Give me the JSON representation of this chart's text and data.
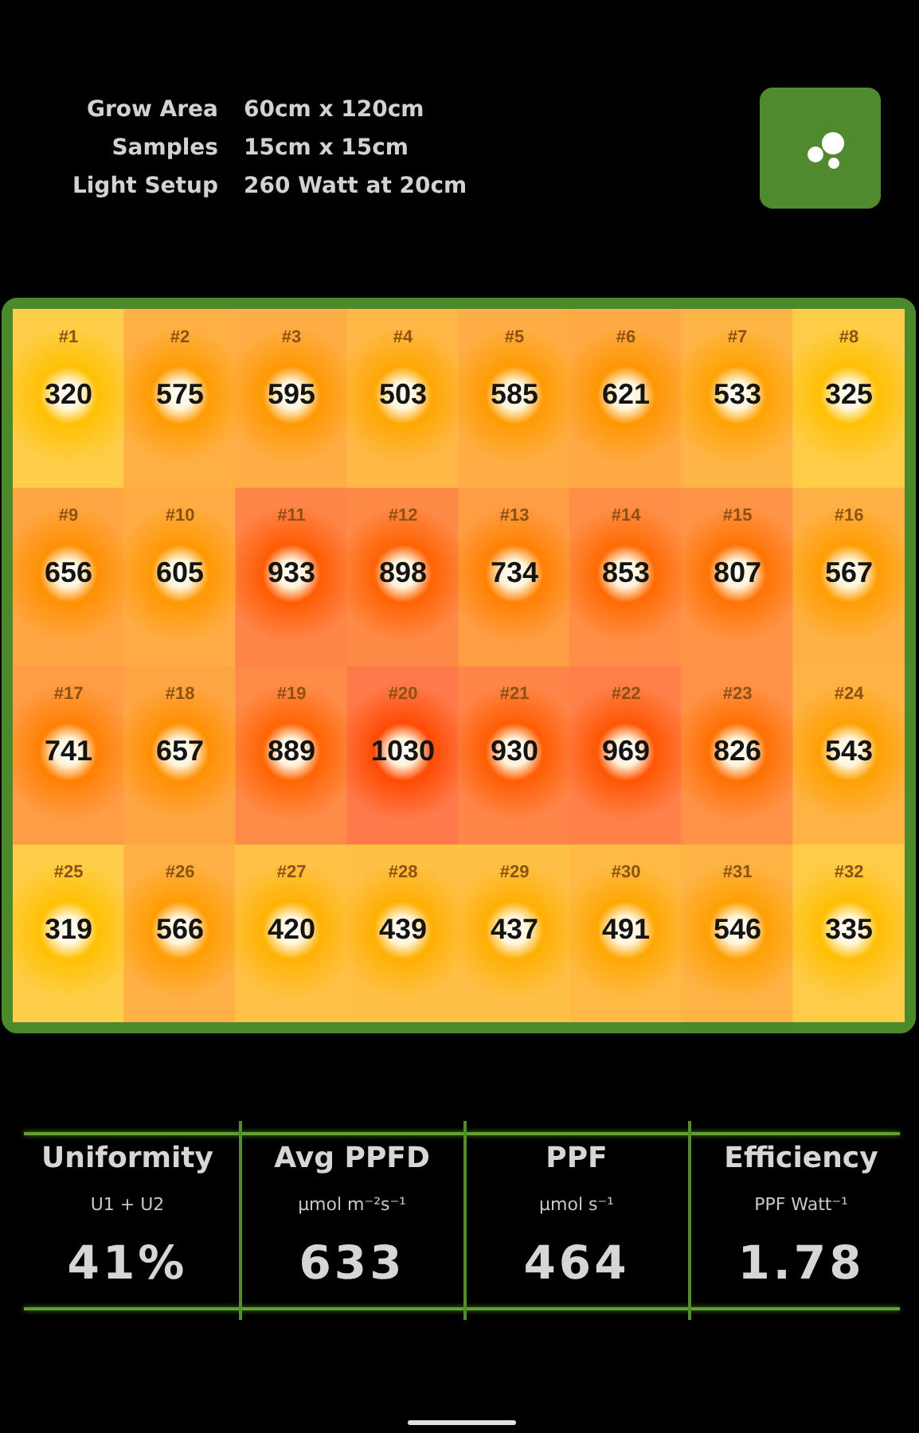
{
  "chart_data": [
    {
      "type": "other",
      "annotations": [
        "Grow Area",
        "60cm x 120cm",
        "Samples",
        "15cm x 15cm",
        "Light Setup",
        "260 Watt at 20cm"
      ]
    },
    {
      "type": "heatmap",
      "categories": [
        null,
        null,
        null,
        null,
        null,
        null,
        null,
        null
      ],
      "y_categories": [
        null,
        null,
        null,
        null
      ],
      "cells": [
        [
          320,
          575,
          595,
          503,
          585,
          621,
          533,
          325
        ],
        [
          656,
          605,
          933,
          898,
          734,
          853,
          807,
          567
        ],
        [
          741,
          657,
          889,
          1030,
          930,
          969,
          826,
          543
        ],
        [
          319,
          566,
          420,
          439,
          437,
          491,
          546,
          335
        ]
      ],
      "annotations": [
        "#1",
        "#2",
        "#3",
        "#4",
        "#5",
        "#6",
        "#7",
        "#8",
        "#9",
        "#10",
        "#11",
        "#12",
        "#13",
        "#14",
        "#15",
        "#16",
        "#17",
        "#18",
        "#19",
        "#20",
        "#21",
        "#22",
        "#23",
        "#24",
        "#25",
        "#26",
        "#27",
        "#28",
        "#29",
        "#30",
        "#31",
        "#32"
      ],
      "data_labels": true
    },
    {
      "type": "other",
      "categories": [
        "Uniformity",
        "Avg PPFD",
        "PPF",
        "Efficiency"
      ],
      "annotations": [
        "U1 + U2",
        "µmol m⁻²s⁻¹",
        "µmol s⁻¹",
        "PPF Watt⁻¹"
      ],
      "value_labels": [
        "41%",
        "633",
        "464",
        "1.78"
      ]
    }
  ]
}
